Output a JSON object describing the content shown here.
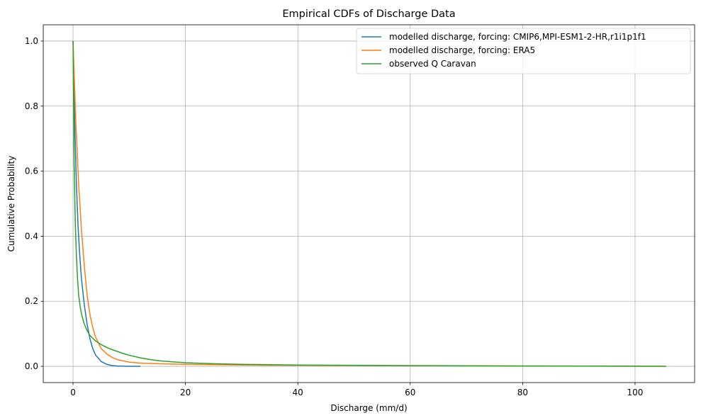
{
  "chart_data": {
    "type": "line",
    "title": "Empirical CDFs of Discharge Data",
    "xlabel": "Discharge (mm/d)",
    "ylabel": "Cumulative Probability",
    "xlim": [
      -5.3,
      110.6
    ],
    "ylim": [
      -0.05,
      1.05
    ],
    "xticks": [
      0,
      20,
      40,
      60,
      80,
      100
    ],
    "xtick_labels": [
      "0",
      "20",
      "40",
      "60",
      "80",
      "100"
    ],
    "yticks": [
      0.0,
      0.2,
      0.4,
      0.6,
      0.8,
      1.0
    ],
    "ytick_labels": [
      "0.0",
      "0.2",
      "0.4",
      "0.6",
      "0.8",
      "1.0"
    ],
    "grid": true,
    "legend_position": "top-right",
    "series": [
      {
        "name": "modelled discharge, forcing: CMIP6,MPI-ESM1-2-HR,r1i1p1f1",
        "color": "#1f77b4",
        "x": [
          0,
          0.3,
          0.6,
          0.9,
          1.2,
          1.5,
          2.0,
          2.5,
          3.0,
          3.5,
          4.0,
          5.0,
          6.0,
          7.0,
          8.0,
          9.0,
          10.0,
          12.0
        ],
        "y": [
          1.0,
          0.75,
          0.56,
          0.43,
          0.34,
          0.27,
          0.19,
          0.13,
          0.085,
          0.055,
          0.035,
          0.015,
          0.006,
          0.002,
          0.001,
          0.0005,
          0.0002,
          0.0
        ]
      },
      {
        "name": "modelled discharge, forcing: ERA5",
        "color": "#ff7f0e",
        "x": [
          0,
          0.5,
          1.0,
          1.5,
          2.0,
          2.5,
          3.0,
          3.5,
          4.0,
          5.0,
          6.0,
          7.0,
          8.0,
          10.0,
          12.0,
          15.0,
          20.0,
          30.0,
          40.0,
          60.0,
          80.0,
          105.5
        ],
        "y": [
          1.0,
          0.75,
          0.56,
          0.42,
          0.31,
          0.22,
          0.16,
          0.12,
          0.09,
          0.055,
          0.038,
          0.027,
          0.02,
          0.013,
          0.01,
          0.008,
          0.006,
          0.004,
          0.003,
          0.002,
          0.001,
          0.0
        ]
      },
      {
        "name": "observed Q Caravan",
        "color": "#2ca02c",
        "x": [
          0,
          0.2,
          0.4,
          0.6,
          0.8,
          1.0,
          1.3,
          1.6,
          2.0,
          2.5,
          3.0,
          4.0,
          5.0,
          6.0,
          7.0,
          8.0,
          9.0,
          10.0,
          12.0,
          14.0,
          16.0,
          20.0,
          25.0,
          30.0,
          40.0,
          50.0,
          60.0,
          70.0,
          80.0,
          90.0,
          105.5
        ],
        "y": [
          1.0,
          0.62,
          0.44,
          0.34,
          0.27,
          0.22,
          0.18,
          0.155,
          0.13,
          0.11,
          0.095,
          0.078,
          0.067,
          0.058,
          0.051,
          0.045,
          0.039,
          0.034,
          0.026,
          0.02,
          0.016,
          0.011,
          0.008,
          0.006,
          0.004,
          0.003,
          0.002,
          0.0015,
          0.001,
          0.0006,
          0.0
        ]
      }
    ]
  }
}
